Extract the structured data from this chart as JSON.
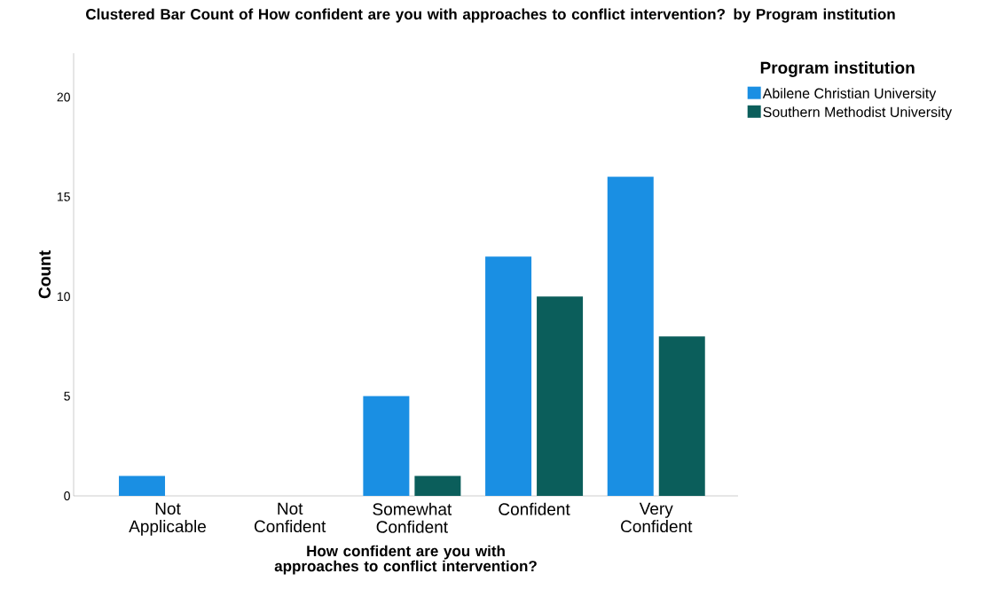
{
  "chart_data": {
    "type": "bar",
    "title": "Clustered Bar Count of How confident are you with approaches to conflict intervention? by Program institution",
    "xlabel": "How confident are you with approaches to conflict intervention?",
    "ylabel": "Count",
    "legend_title": "Program institution",
    "categories": [
      "Not Applicable",
      "Not Confident",
      "Somewhat Confident",
      "Confident",
      "Very Confident"
    ],
    "series": [
      {
        "name": "Abilene Christian University",
        "color": "#1a8fe3",
        "values": [
          1,
          0,
          5,
          12,
          16
        ]
      },
      {
        "name": "Southern Methodist University",
        "color": "#0b5e5b",
        "values": [
          0,
          0,
          1,
          10,
          8
        ]
      }
    ],
    "ylim": [
      0,
      22.2
    ],
    "yticks": [
      0,
      5,
      10,
      15,
      20
    ],
    "grid": false,
    "legend": "top right"
  }
}
